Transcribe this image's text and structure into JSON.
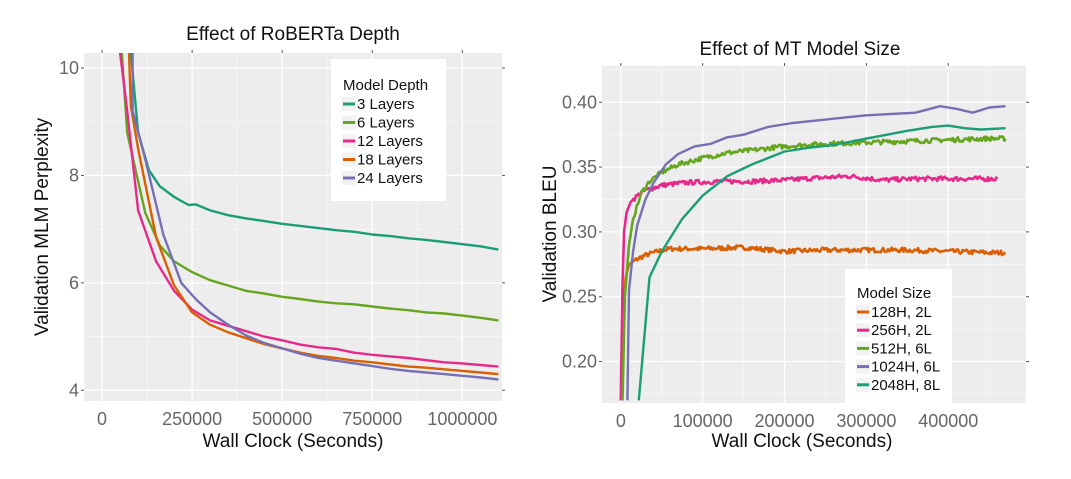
{
  "chart_data": [
    {
      "type": "line",
      "title": "Effect of RoBERTa Depth",
      "xlabel": "Wall Clock (Seconds)",
      "ylabel": "Validation MLM Perplexity",
      "xlim": [
        -50000,
        1110000
      ],
      "ylim": [
        3.8,
        10.28
      ],
      "xticks": [
        0,
        250000,
        500000,
        750000,
        1000000
      ],
      "xtick_labels": [
        "0",
        "250000",
        "500000",
        "750000",
        "1000000"
      ],
      "yticks": [
        4,
        6,
        8,
        10
      ],
      "ytick_labels": [
        "4",
        "6",
        "8",
        "10"
      ],
      "grid": true,
      "legend": {
        "title": "Model Depth",
        "position": "top-right"
      },
      "series": [
        {
          "name": "3 Layers",
          "color": "#1b9e77",
          "x": [
            80000,
            100000,
            130000,
            160000,
            200000,
            240000,
            260000,
            300000,
            350000,
            400000,
            450000,
            500000,
            550000,
            600000,
            650000,
            700000,
            750000,
            800000,
            850000,
            900000,
            950000,
            1000000,
            1050000,
            1100000
          ],
          "y": [
            10.3,
            8.8,
            8.1,
            7.8,
            7.6,
            7.45,
            7.46,
            7.35,
            7.26,
            7.2,
            7.15,
            7.1,
            7.06,
            7.02,
            6.98,
            6.95,
            6.9,
            6.87,
            6.83,
            6.8,
            6.76,
            6.72,
            6.68,
            6.62
          ]
        },
        {
          "name": "6 Layers",
          "color": "#66a61e",
          "x": [
            55000,
            70000,
            90000,
            120000,
            160000,
            200000,
            250000,
            300000,
            350000,
            400000,
            450000,
            500000,
            550000,
            600000,
            650000,
            700000,
            750000,
            800000,
            850000,
            900000,
            950000,
            1000000,
            1050000,
            1100000
          ],
          "y": [
            10.3,
            8.8,
            8.2,
            7.3,
            6.7,
            6.4,
            6.2,
            6.05,
            5.95,
            5.85,
            5.8,
            5.74,
            5.7,
            5.65,
            5.62,
            5.6,
            5.56,
            5.52,
            5.49,
            5.45,
            5.43,
            5.39,
            5.35,
            5.3
          ]
        },
        {
          "name": "12 Layers",
          "color": "#e7298a",
          "x": [
            50000,
            70000,
            100000,
            150000,
            200000,
            250000,
            300000,
            350000,
            400000,
            450000,
            500000,
            550000,
            600000,
            650000,
            700000,
            750000,
            800000,
            850000,
            900000,
            950000,
            1000000,
            1050000,
            1100000
          ],
          "y": [
            10.3,
            9.2,
            7.35,
            6.4,
            5.85,
            5.5,
            5.3,
            5.2,
            5.1,
            5.0,
            4.93,
            4.85,
            4.8,
            4.77,
            4.7,
            4.66,
            4.63,
            4.6,
            4.56,
            4.52,
            4.5,
            4.47,
            4.44
          ]
        },
        {
          "name": "18 Layers",
          "color": "#d95f02",
          "x": [
            75000,
            80000,
            100000,
            150000,
            200000,
            250000,
            300000,
            350000,
            400000,
            450000,
            500000,
            550000,
            600000,
            650000,
            700000,
            750000,
            800000,
            850000,
            900000,
            950000,
            1000000,
            1050000,
            1100000
          ],
          "y": [
            10.3,
            9.3,
            8.5,
            6.85,
            5.95,
            5.45,
            5.22,
            5.08,
            4.97,
            4.86,
            4.78,
            4.7,
            4.64,
            4.6,
            4.55,
            4.52,
            4.48,
            4.44,
            4.42,
            4.39,
            4.36,
            4.33,
            4.3
          ]
        },
        {
          "name": "24 Layers",
          "color": "#7570b3",
          "x": [
            85000,
            85000,
            120000,
            170000,
            220000,
            260000,
            300000,
            350000,
            400000,
            450000,
            500000,
            550000,
            600000,
            650000,
            700000,
            750000,
            800000,
            850000,
            900000,
            950000,
            1000000,
            1050000,
            1100000
          ],
          "y": [
            10.3,
            9.2,
            8.3,
            6.9,
            6.0,
            5.7,
            5.45,
            5.22,
            5.02,
            4.88,
            4.78,
            4.68,
            4.6,
            4.55,
            4.5,
            4.45,
            4.4,
            4.36,
            4.33,
            4.3,
            4.27,
            4.24,
            4.2
          ]
        }
      ]
    },
    {
      "type": "line",
      "title": "Effect of MT Model Size",
      "xlabel": "Wall Clock (Seconds)",
      "ylabel": "Validation BLEU",
      "xlim": [
        -23000,
        495000
      ],
      "ylim": [
        0.168,
        0.428
      ],
      "xticks": [
        0,
        100000,
        200000,
        300000,
        400000
      ],
      "xtick_labels": [
        "0",
        "100000",
        "200000",
        "300000",
        "400000"
      ],
      "yticks": [
        0.2,
        0.25,
        0.3,
        0.35,
        0.4
      ],
      "ytick_labels": [
        "0.20",
        "0.25",
        "0.30",
        "0.35",
        "0.40"
      ],
      "grid": true,
      "legend": {
        "title": "Model Size",
        "position": "bottom-right"
      },
      "series": [
        {
          "name": "128H, 2L",
          "color": "#d95f02",
          "noisy": true,
          "x": [
            1000,
            3000,
            6000,
            10000,
            20000,
            30000,
            45000,
            60000,
            100000,
            150000,
            200000,
            250000,
            300000,
            350000,
            400000,
            450000,
            470000
          ],
          "y": [
            0.17,
            0.24,
            0.265,
            0.275,
            0.279,
            0.282,
            0.285,
            0.287,
            0.287,
            0.288,
            0.285,
            0.286,
            0.286,
            0.286,
            0.285,
            0.284,
            0.284
          ]
        },
        {
          "name": "256H, 2L",
          "color": "#e7298a",
          "noisy": true,
          "x": [
            0,
            2000,
            4000,
            7000,
            12000,
            20000,
            30000,
            50000,
            80000,
            120000,
            160000,
            200000,
            250000,
            280000,
            320000,
            360000,
            400000,
            440000,
            460000
          ],
          "y": [
            0.17,
            0.26,
            0.3,
            0.315,
            0.323,
            0.328,
            0.332,
            0.336,
            0.338,
            0.339,
            0.339,
            0.34,
            0.342,
            0.343,
            0.34,
            0.341,
            0.341,
            0.341,
            0.341
          ]
        },
        {
          "name": "512H, 6L",
          "color": "#66a61e",
          "noisy": true,
          "x": [
            2000,
            5000,
            10000,
            15000,
            25000,
            35000,
            50000,
            70000,
            100000,
            130000,
            160000,
            200000,
            250000,
            300000,
            350000,
            400000,
            450000,
            470000
          ],
          "y": [
            0.17,
            0.25,
            0.29,
            0.31,
            0.33,
            0.339,
            0.346,
            0.352,
            0.357,
            0.361,
            0.363,
            0.366,
            0.368,
            0.369,
            0.37,
            0.371,
            0.372,
            0.372
          ]
        },
        {
          "name": "1024H, 6L",
          "color": "#7570b3",
          "noisy": false,
          "x": [
            8000,
            10000,
            15000,
            20000,
            30000,
            40000,
            55000,
            70000,
            90000,
            110000,
            130000,
            150000,
            180000,
            210000,
            240000,
            270000,
            300000,
            330000,
            360000,
            390000,
            410000,
            430000,
            450000,
            470000
          ],
          "y": [
            0.17,
            0.255,
            0.285,
            0.305,
            0.325,
            0.338,
            0.352,
            0.36,
            0.366,
            0.368,
            0.373,
            0.375,
            0.381,
            0.384,
            0.386,
            0.388,
            0.39,
            0.391,
            0.392,
            0.397,
            0.395,
            0.392,
            0.396,
            0.397
          ]
        },
        {
          "name": "2048H, 8L",
          "color": "#1b9e77",
          "noisy": false,
          "x": [
            22000,
            35000,
            50000,
            75000,
            100000,
            130000,
            160000,
            200000,
            230000,
            260000,
            300000,
            350000,
            380000,
            400000,
            420000,
            440000,
            470000
          ],
          "y": [
            0.17,
            0.265,
            0.285,
            0.31,
            0.328,
            0.343,
            0.352,
            0.362,
            0.365,
            0.367,
            0.372,
            0.378,
            0.381,
            0.382,
            0.38,
            0.379,
            0.38
          ]
        }
      ]
    }
  ]
}
